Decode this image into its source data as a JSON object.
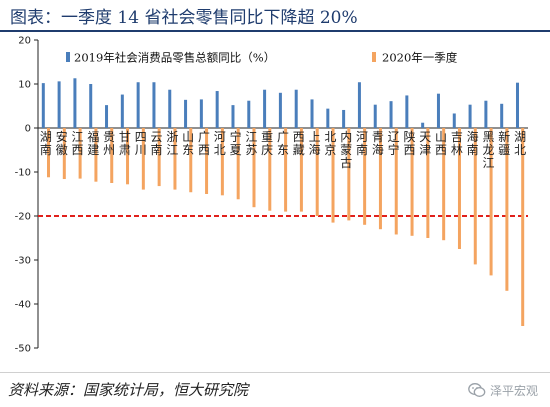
{
  "title": "图表：一季度 14 省社会零售同比下降超 20%",
  "source": "资料来源：国家统计局，恒大研究院",
  "watermark": "泽平宏观",
  "chart_data": {
    "type": "bar",
    "ylim": [
      -50,
      20
    ],
    "yticks": [
      20,
      10,
      0,
      -10,
      -20,
      -30,
      -40,
      -50
    ],
    "legend_position": "top",
    "threshold_line": -20,
    "colors": {
      "series1": "#4a7ebb",
      "series2": "#f4a460",
      "threshold": "#e0201b",
      "axis": "#222222"
    },
    "categories": [
      [
        "湖",
        "南"
      ],
      [
        "安",
        "徽"
      ],
      [
        "江",
        "西"
      ],
      [
        "福",
        "建"
      ],
      [
        "贵",
        "州"
      ],
      [
        "甘",
        "肃"
      ],
      [
        "四",
        "川"
      ],
      [
        "云",
        "南"
      ],
      [
        "浙",
        "江"
      ],
      [
        "山",
        "东"
      ],
      [
        "广",
        "西"
      ],
      [
        "河",
        "北"
      ],
      [
        "宁",
        "夏"
      ],
      [
        "江",
        "苏"
      ],
      [
        "重",
        "庆"
      ],
      [
        "广",
        "东"
      ],
      [
        "西",
        "藏"
      ],
      [
        "上",
        "海"
      ],
      [
        "北",
        "京"
      ],
      [
        "内",
        "蒙",
        "古"
      ],
      [
        "河",
        "南"
      ],
      [
        "青",
        "海"
      ],
      [
        "辽",
        "宁"
      ],
      [
        "陕",
        "西"
      ],
      [
        "天",
        "津"
      ],
      [
        "山",
        "西"
      ],
      [
        "吉",
        "林"
      ],
      [
        "海",
        "南"
      ],
      [
        "黑",
        "龙",
        "江"
      ],
      [
        "新",
        "疆"
      ],
      [
        "湖",
        "北"
      ]
    ],
    "series": [
      {
        "name": "2019年社会消费品零售总额同比（%）",
        "values": [
          10.2,
          10.6,
          11.3,
          10.0,
          5.2,
          7.6,
          10.4,
          10.4,
          8.7,
          6.4,
          6.5,
          8.4,
          5.2,
          6.2,
          8.7,
          8.0,
          8.7,
          6.5,
          4.4,
          4.1,
          10.4,
          5.3,
          6.1,
          7.4,
          1.2,
          7.8,
          3.3,
          5.3,
          6.2,
          5.5,
          10.3
        ]
      },
      {
        "name": "2020年一季度",
        "values": [
          -11.2,
          -11.6,
          -11.5,
          -12.2,
          -12.5,
          -12.8,
          -14.0,
          -13.2,
          -14.0,
          -14.6,
          -15.0,
          -15.3,
          -16.2,
          -18.0,
          -18.8,
          -19.0,
          -19.0,
          -20.0,
          -21.5,
          -21.0,
          -22.0,
          -23.0,
          -24.2,
          -24.5,
          -25.0,
          -25.5,
          -27.5,
          -31.0,
          -33.5,
          -37.0,
          -45.0
        ]
      }
    ]
  }
}
